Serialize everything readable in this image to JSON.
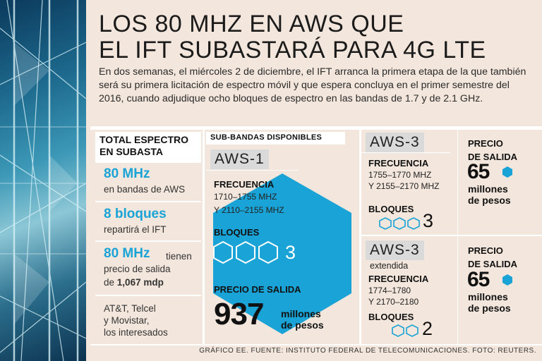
{
  "title_line1": "LOS 80 MHZ EN AWS QUE",
  "title_line2": "EL IFT SUBASTARÁ PARA 4G LTE",
  "intro": "En dos semanas, el miércoles 2 de diciembre, el IFT arranca la primera etapa de la que también será su primera licitación de espectro móvil y que espera concluya en el primer semestre del 2016, cuando adjudique ocho bloques de espectro en las bandas de 1.7 y de 2.1 GHz.",
  "left": {
    "head_line1": "TOTAL ESPECTRO",
    "head_line2": "EN SUBASTA",
    "stat1_big": "80 MHz",
    "stat1_sub": "en bandas de AWS",
    "stat2_big": "8 bloques",
    "stat2_sub": "repartirá el IFT",
    "stat3_big": "80 MHz",
    "stat3_tail": "tienen",
    "stat3_sub1": "precio de salida",
    "stat3_sub2_pre": "de",
    "stat3_sub2_bold": "1,067 mdp",
    "stat4_l1": "AT&T, Telcel",
    "stat4_l2": "y Movistar,",
    "stat4_l3": "los interesados"
  },
  "mid": {
    "head": "SUB-BANDAS DISPONIBLES",
    "tag": "AWS-1",
    "freq_label": "FRECUENCIA",
    "freq1": "1710–1755 MHZ",
    "freq2": "Y 2110–2155 MHZ",
    "blocks_label": "BLOQUES",
    "blocks_num": "3",
    "price_label": "PRECIO DE SALIDA",
    "price_num": "937",
    "price_unit1": "millones",
    "price_unit2": "de pesos"
  },
  "aws3a": {
    "tag": "AWS-3",
    "freq_label": "FRECUENCIA",
    "freq1": "1755–1770 MHZ",
    "freq2": "Y 2155–2170 MHZ",
    "blocks_label": "BLOQUES",
    "blocks_num": "3",
    "price_label1": "PRECIO",
    "price_label2": "DE SALIDA",
    "price_num": "65",
    "price_unit1": "millones",
    "price_unit2": "de pesos"
  },
  "aws3b": {
    "tag": "AWS-3",
    "tag_sub": "extendida",
    "freq_label": "FRECUENCIA",
    "freq1": "1774–1780",
    "freq2": "Y 2170–2180",
    "blocks_label": "BLOQUES",
    "blocks_num": "2",
    "price_label1": "PRECIO",
    "price_label2": "DE SALIDA",
    "price_num": "65",
    "price_unit1": "millones",
    "price_unit2": "de pesos"
  },
  "credits": "GRÁFICO EE. FUENTE: INSTITUTO FEDERAL DE TELECOMUNICACIONES. FOTO: REUTERS.",
  "colors": {
    "accent": "#1aa3d6",
    "background": "#f3e6dc",
    "tag": "#dadada"
  },
  "icons": [
    "antenna-photo",
    "hexagon-icon"
  ]
}
